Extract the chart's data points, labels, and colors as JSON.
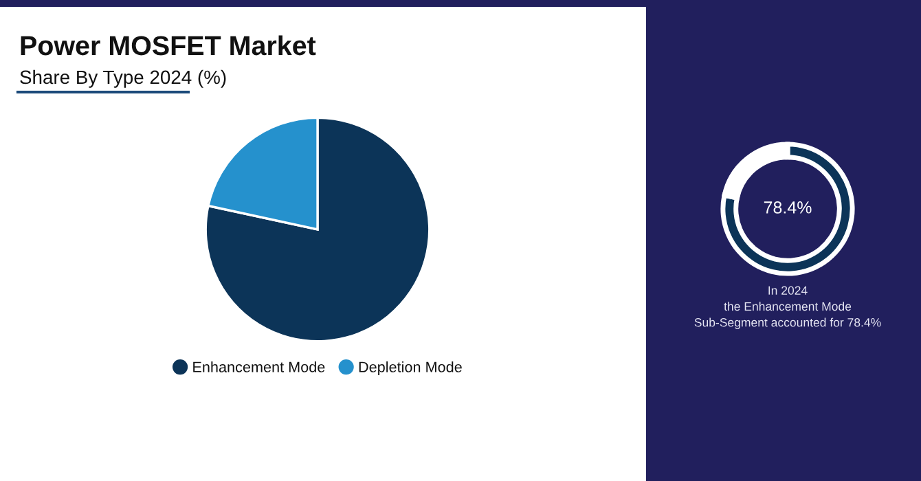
{
  "chart_data": [
    {
      "type": "pie",
      "title": "Power MOSFET Market",
      "subtitle": "Share By Type 2024 (%)",
      "categories": [
        "Enhancement Mode",
        "Depletion Mode"
      ],
      "values": [
        78.4,
        21.6
      ],
      "colors": [
        "#0c3458",
        "#2591cd"
      ],
      "legend": "bottom"
    },
    {
      "type": "donut",
      "categories": [
        null,
        null
      ],
      "values": [
        78.4,
        21.6
      ],
      "colors": [
        "#0c3458",
        "#ffffff"
      ],
      "value_labels": [
        "78.4%",
        null
      ],
      "annotations": [
        "In 2024\nthe Enhancement Mode\nSub-Segment accounted for 78.4%"
      ]
    }
  ]
}
